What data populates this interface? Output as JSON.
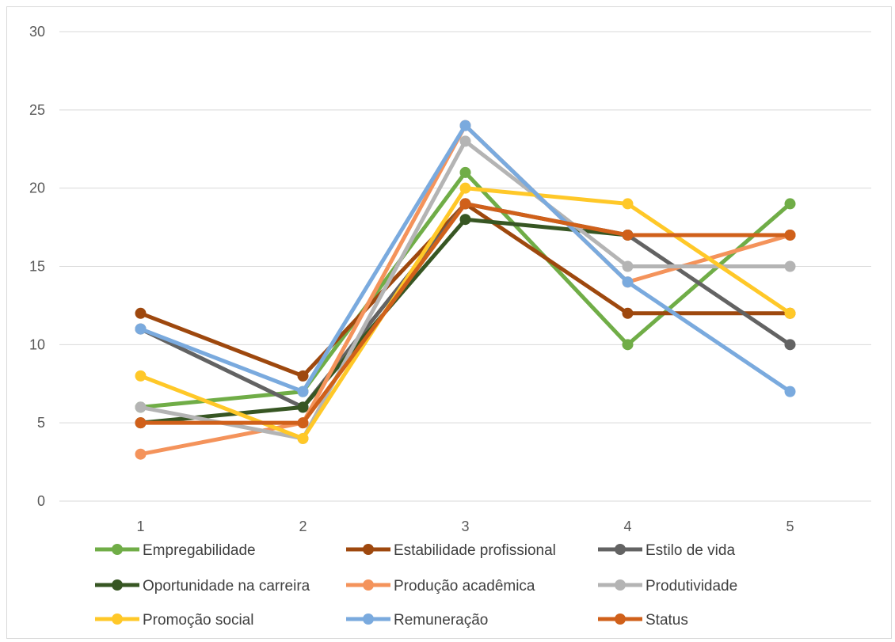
{
  "chart_data": {
    "type": "line",
    "title": "",
    "xlabel": "",
    "ylabel": "",
    "categories": [
      "1",
      "2",
      "3",
      "4",
      "5"
    ],
    "ylim": [
      0,
      30
    ],
    "yticks": [
      0,
      5,
      10,
      15,
      20,
      25,
      30
    ],
    "grid": true,
    "legend_position": "bottom",
    "series": [
      {
        "name": "Empregabilidade",
        "color": "#70ad47",
        "values": [
          6,
          7,
          21,
          10,
          19
        ]
      },
      {
        "name": "Estabilidade profissional",
        "color": "#9e480e",
        "values": [
          12,
          8,
          19,
          12,
          12
        ]
      },
      {
        "name": "Estilo de vida",
        "color": "#636363",
        "values": [
          11,
          6,
          19,
          17,
          10
        ]
      },
      {
        "name": "Oportunidade na carreira",
        "color": "#375623",
        "values": [
          5,
          6,
          18,
          17,
          17
        ]
      },
      {
        "name": "Produção acadêmica",
        "color": "#f4935b",
        "values": [
          3,
          5,
          24,
          14,
          17
        ]
      },
      {
        "name": "Produtividade",
        "color": "#b4b4b4",
        "values": [
          6,
          4,
          23,
          15,
          15
        ]
      },
      {
        "name": "Promoção social",
        "color": "#ffc828",
        "values": [
          8,
          4,
          20,
          19,
          12
        ]
      },
      {
        "name": "Remuneração",
        "color": "#7aaade",
        "values": [
          11,
          7,
          24,
          14,
          7
        ]
      },
      {
        "name": "Status",
        "color": "#d0601a",
        "values": [
          5,
          5,
          19,
          17,
          17
        ]
      }
    ]
  }
}
